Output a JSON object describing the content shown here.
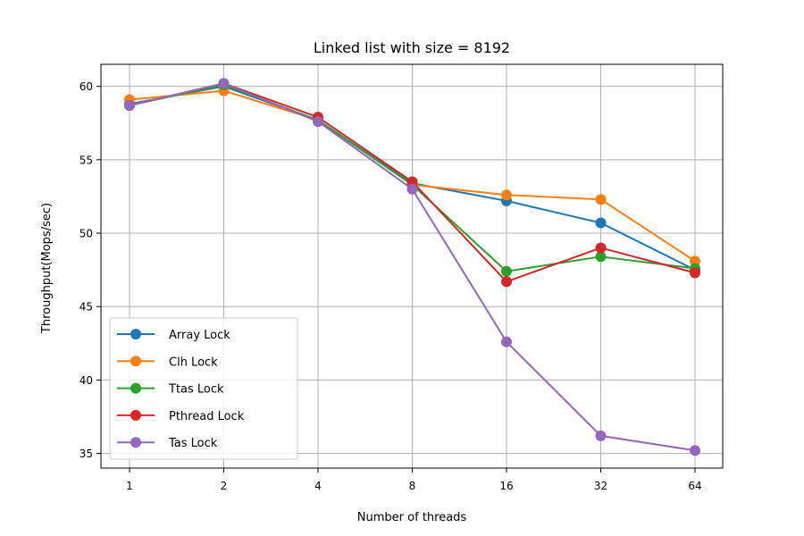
{
  "chart_data": {
    "type": "line",
    "title": "Linked list with size = 8192",
    "xlabel": "Number of threads",
    "ylabel": "Throughput(Mops/sec)",
    "x": [
      "1",
      "2",
      "4",
      "8",
      "16",
      "32",
      "64"
    ],
    "x_scale": "log2",
    "ylim": [
      34,
      61.5
    ],
    "yticks": [
      "35",
      "40",
      "45",
      "50",
      "55",
      "60"
    ],
    "grid": true,
    "legend_position": "lower-left",
    "series": [
      {
        "name": "Array Lock",
        "color": "#1f77b4",
        "values": [
          58.8,
          60.0,
          57.7,
          53.4,
          52.2,
          50.7,
          47.5
        ]
      },
      {
        "name": "Clh Lock",
        "color": "#ff7f0e",
        "values": [
          59.1,
          59.7,
          57.7,
          53.3,
          52.6,
          52.3,
          48.1
        ]
      },
      {
        "name": "Ttas Lock",
        "color": "#2ca02c",
        "values": [
          58.7,
          60.1,
          57.7,
          53.3,
          47.4,
          48.4,
          47.6
        ]
      },
      {
        "name": "Pthread Lock",
        "color": "#d62728",
        "values": [
          58.7,
          60.2,
          57.9,
          53.5,
          46.7,
          49.0,
          47.3
        ]
      },
      {
        "name": "Tas Lock",
        "color": "#9467bd",
        "values": [
          58.7,
          60.2,
          57.6,
          53.0,
          42.6,
          36.2,
          35.2
        ]
      }
    ]
  }
}
